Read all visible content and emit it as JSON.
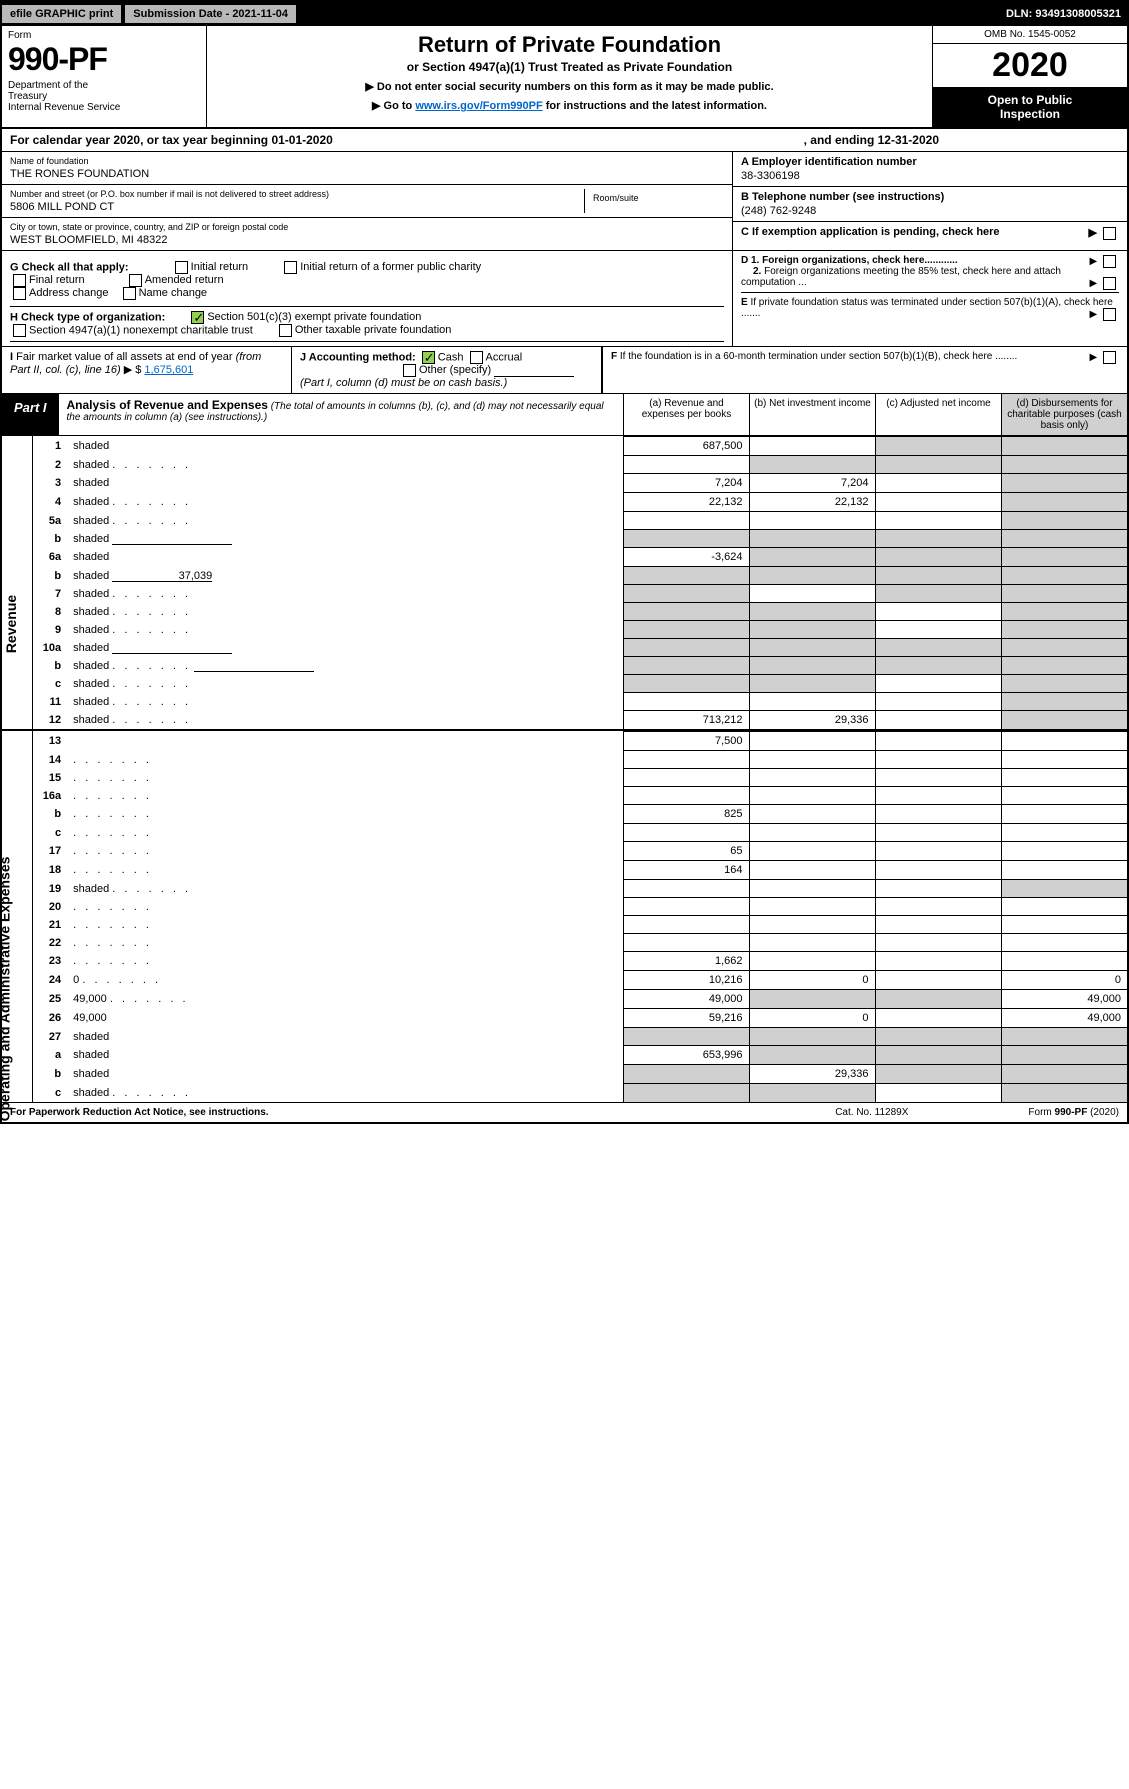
{
  "top_bar": {
    "efile": "efile GRAPHIC print",
    "submission": "Submission Date - 2021-11-04",
    "dln": "DLN: 93491308005321"
  },
  "header": {
    "form_label": "Form",
    "form_number": "990-PF",
    "dept": "Department of the Treasury\nInternal Revenue Service",
    "title": "Return of Private Foundation",
    "subtitle": "or Section 4947(a)(1) Trust Treated as Private Foundation",
    "note1": "▶ Do not enter social security numbers on this form as it may be made public.",
    "note2_pre": "▶ Go to ",
    "note2_link": "www.irs.gov/Form990PF",
    "note2_post": " for instructions and the latest information.",
    "omb": "OMB No. 1545-0052",
    "year": "2020",
    "open_public": "Open to Public Inspection"
  },
  "cal_year": {
    "text": "For calendar year 2020, or tax year beginning 01-01-2020",
    "ending": ", and ending 12-31-2020"
  },
  "entity": {
    "name_label": "Name of foundation",
    "name": "THE RONES FOUNDATION",
    "addr_label": "Number and street (or P.O. box number if mail is not delivered to street address)",
    "addr": "5806 MILL POND CT",
    "suite_label": "Room/suite",
    "city_label": "City or town, state or province, country, and ZIP or foreign postal code",
    "city": "WEST BLOOMFIELD, MI  48322",
    "ein_label": "A Employer identification number",
    "ein": "38-3306198",
    "tel_label": "B Telephone number (see instructions)",
    "tel": "(248) 762-9248",
    "pending_label": "C If exemption application is pending, check here"
  },
  "checks": {
    "g_label": "G Check all that apply:",
    "g_opts": [
      "Initial return",
      "Initial return of a former public charity",
      "Final return",
      "Amended return",
      "Address change",
      "Name change"
    ],
    "h_label": "H Check type of organization:",
    "h_501c3": "Section 501(c)(3) exempt private foundation",
    "h_4947": "Section 4947(a)(1) nonexempt charitable trust",
    "h_other": "Other taxable private foundation",
    "d1": "D 1. Foreign organizations, check here............",
    "d2": "2. Foreign organizations meeting the 85% test, check here and attach computation ...",
    "e": "E  If private foundation status was terminated under section 507(b)(1)(A), check here .......",
    "f": "F  If the foundation is in a 60-month termination under section 507(b)(1)(B), check here ........"
  },
  "i_block": {
    "label": "I Fair market value of all assets at end of year (from Part II, col. (c), line 16) ▶ $",
    "value": "1,675,601"
  },
  "j_block": {
    "label": "J Accounting method:",
    "cash": "Cash",
    "accrual": "Accrual",
    "other": "Other (specify)",
    "note": "(Part I, column (d) must be on cash basis.)"
  },
  "part1": {
    "tag": "Part I",
    "title": "Analysis of Revenue and Expenses",
    "title_note": "(The total of amounts in columns (b), (c), and (d) may not necessarily equal the amounts in column (a) (see instructions).)",
    "cols": {
      "a": "(a)   Revenue and expenses per books",
      "b": "(b)   Net investment income",
      "c": "(c)   Adjusted net income",
      "d": "(d)  Disbursements for charitable purposes (cash basis only)"
    }
  },
  "side_labels": {
    "revenue": "Revenue",
    "expenses": "Operating and Administrative Expenses"
  },
  "rows": [
    {
      "n": "1",
      "d": "shaded",
      "a": "687,500",
      "b": "",
      "c": "shaded"
    },
    {
      "n": "2",
      "d": "shaded",
      "a": "",
      "b": "shaded",
      "c": "shaded",
      "dots": true
    },
    {
      "n": "3",
      "d": "shaded",
      "a": "7,204",
      "b": "7,204",
      "c": ""
    },
    {
      "n": "4",
      "d": "shaded",
      "a": "22,132",
      "b": "22,132",
      "c": "",
      "dots": true
    },
    {
      "n": "5a",
      "d": "shaded",
      "a": "",
      "b": "",
      "c": "",
      "dots": true
    },
    {
      "n": "b",
      "d": "shaded",
      "a": "shaded",
      "b": "shaded",
      "c": "shaded",
      "blank": true
    },
    {
      "n": "6a",
      "d": "shaded",
      "a": "-3,624",
      "b": "shaded",
      "c": "shaded"
    },
    {
      "n": "b",
      "d": "shaded",
      "a": "shaded",
      "b": "shaded",
      "c": "shaded",
      "inline_val": "37,039"
    },
    {
      "n": "7",
      "d": "shaded",
      "a": "shaded",
      "b": "",
      "c": "shaded",
      "dots": true
    },
    {
      "n": "8",
      "d": "shaded",
      "a": "shaded",
      "b": "shaded",
      "c": "",
      "dots": true
    },
    {
      "n": "9",
      "d": "shaded",
      "a": "shaded",
      "b": "shaded",
      "c": "",
      "dots": true
    },
    {
      "n": "10a",
      "d": "shaded",
      "a": "shaded",
      "b": "shaded",
      "c": "shaded",
      "blank": true
    },
    {
      "n": "b",
      "d": "shaded",
      "a": "shaded",
      "b": "shaded",
      "c": "shaded",
      "blank": true,
      "dots": true
    },
    {
      "n": "c",
      "d": "shaded",
      "a": "shaded",
      "b": "shaded",
      "c": "",
      "dots": true
    },
    {
      "n": "11",
      "d": "shaded",
      "a": "",
      "b": "",
      "c": "",
      "dots": true
    },
    {
      "n": "12",
      "d": "shaded",
      "a": "713,212",
      "b": "29,336",
      "c": "",
      "dots": true
    }
  ],
  "exp_rows": [
    {
      "n": "13",
      "d": "",
      "a": "7,500",
      "b": "",
      "c": ""
    },
    {
      "n": "14",
      "d": "",
      "a": "",
      "b": "",
      "c": "",
      "dots": true
    },
    {
      "n": "15",
      "d": "",
      "a": "",
      "b": "",
      "c": "",
      "dots": true
    },
    {
      "n": "16a",
      "d": "",
      "a": "",
      "b": "",
      "c": "",
      "dots": true
    },
    {
      "n": "b",
      "d": "",
      "a": "825",
      "b": "",
      "c": "",
      "dots": true
    },
    {
      "n": "c",
      "d": "",
      "a": "",
      "b": "",
      "c": "",
      "dots": true
    },
    {
      "n": "17",
      "d": "",
      "a": "65",
      "b": "",
      "c": "",
      "dots": true
    },
    {
      "n": "18",
      "d": "",
      "a": "164",
      "b": "",
      "c": "",
      "dots": true
    },
    {
      "n": "19",
      "d": "shaded",
      "a": "",
      "b": "",
      "c": "",
      "dots": true
    },
    {
      "n": "20",
      "d": "",
      "a": "",
      "b": "",
      "c": "",
      "dots": true
    },
    {
      "n": "21",
      "d": "",
      "a": "",
      "b": "",
      "c": "",
      "dots": true
    },
    {
      "n": "22",
      "d": "",
      "a": "",
      "b": "",
      "c": "",
      "dots": true
    },
    {
      "n": "23",
      "d": "",
      "a": "1,662",
      "b": "",
      "c": "",
      "dots": true
    },
    {
      "n": "24",
      "d": "0",
      "a": "10,216",
      "b": "0",
      "c": "",
      "dots": true
    },
    {
      "n": "25",
      "d": "49,000",
      "a": "49,000",
      "b": "shaded",
      "c": "shaded",
      "dots": true
    },
    {
      "n": "26",
      "d": "49,000",
      "a": "59,216",
      "b": "0",
      "c": ""
    },
    {
      "n": "27",
      "d": "shaded",
      "a": "shaded",
      "b": "shaded",
      "c": "shaded"
    },
    {
      "n": "a",
      "d": "shaded",
      "a": "653,996",
      "b": "shaded",
      "c": "shaded"
    },
    {
      "n": "b",
      "d": "shaded",
      "a": "shaded",
      "b": "29,336",
      "c": "shaded"
    },
    {
      "n": "c",
      "d": "shaded",
      "a": "shaded",
      "b": "shaded",
      "c": "",
      "dots": true
    }
  ],
  "footer": {
    "left": "For Paperwork Reduction Act Notice, see instructions.",
    "mid": "Cat. No. 11289X",
    "right": "Form 990-PF (2020)"
  }
}
